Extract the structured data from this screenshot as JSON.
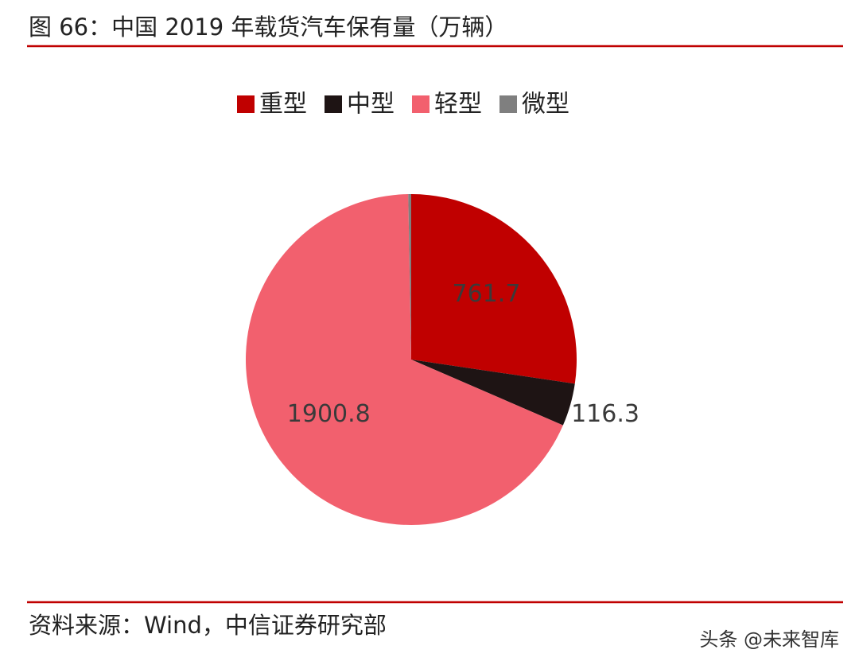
{
  "chart_data": {
    "type": "pie",
    "title": "图 66：中国 2019 年载货汽车保有量（万辆）",
    "categories": [
      "重型",
      "中型",
      "轻型",
      "微型"
    ],
    "values": [
      761.7,
      116.3,
      1900.8,
      8
    ],
    "value_labels": [
      "761.7",
      "116.3",
      "1900.8",
      null
    ],
    "colors": [
      "#c00000",
      "#1e1414",
      "#f2606e",
      "#7f7f7f"
    ],
    "legend": "top",
    "source": "资料来源：Wind，中信证券研究部",
    "watermark": "头条 @未来智库"
  }
}
